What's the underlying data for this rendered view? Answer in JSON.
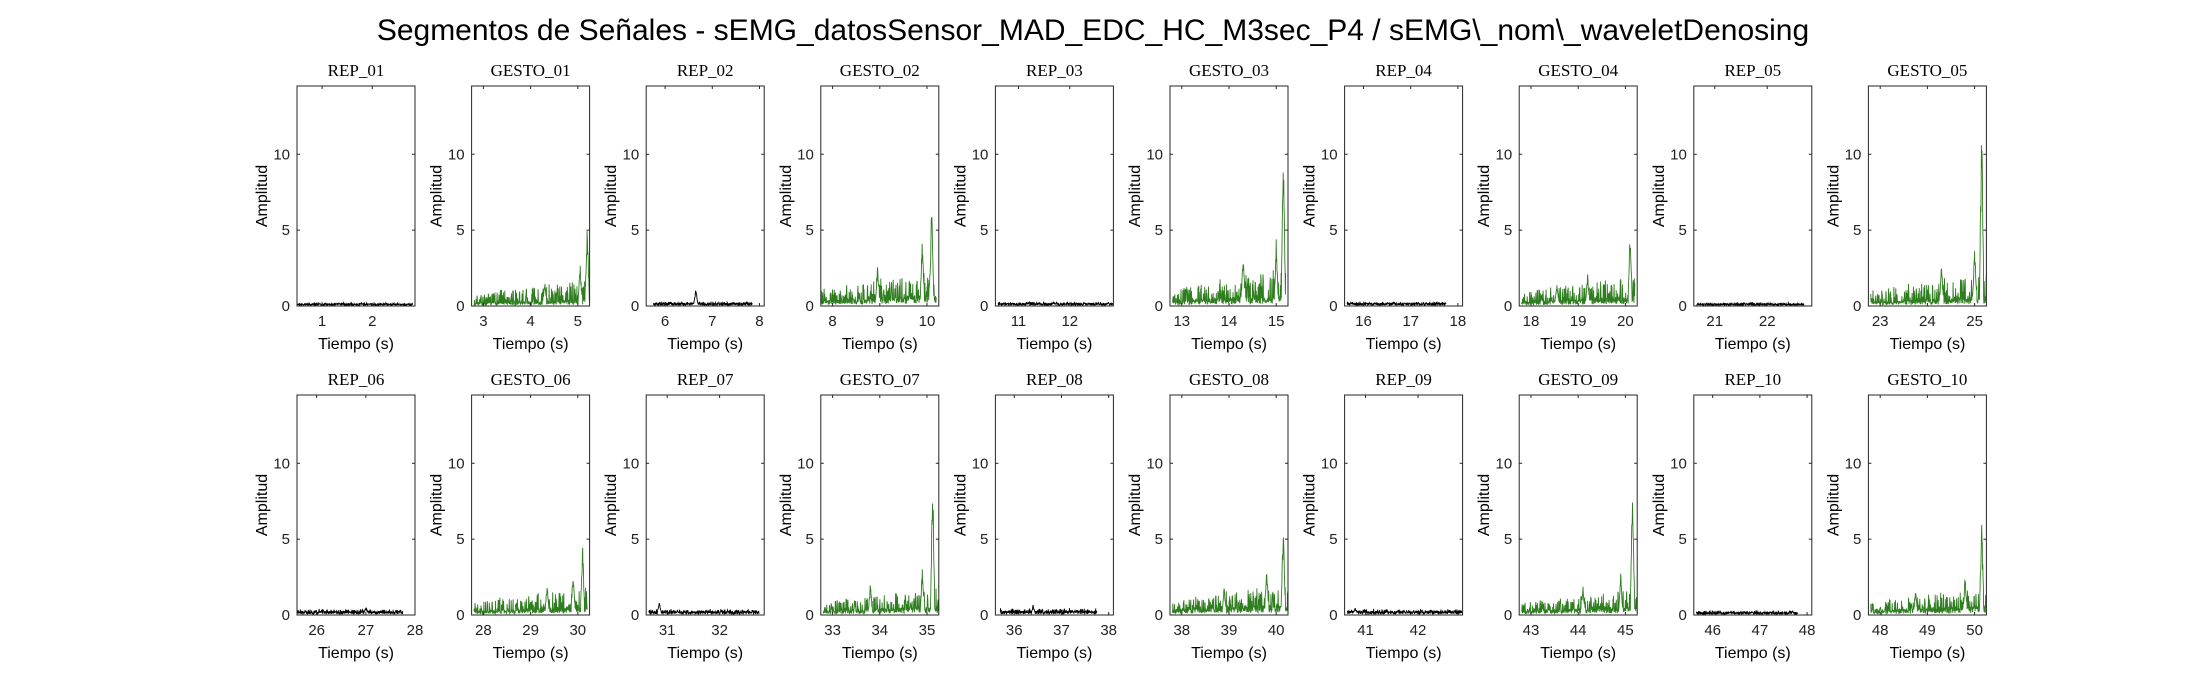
{
  "figure": {
    "title": "Segmentos de Señales - sEMG_datosSensor_MAD_EDC_HC_M3sec_P4 / sEMG\\_nom\\_waveletDenosing",
    "xlabel": "Tiempo (s)",
    "ylabel": "Amplitud"
  },
  "colors": {
    "rep": "#000000",
    "gesto": "#2e7d1e",
    "axis": "#262626"
  },
  "chart_data": {
    "type": "line",
    "layout": "2 rows x 10 columns",
    "ylim": [
      0,
      14.5
    ],
    "yticks": [
      0,
      5,
      10
    ],
    "grid": false,
    "panels": [
      {
        "title": "REP_01",
        "kind": "rep",
        "xlim": [
          0.5,
          2.85
        ],
        "xticks": [
          1,
          2
        ],
        "t_start": 0.5,
        "t_end": 2.8,
        "base": 0.12,
        "noise": 0.14,
        "peaks": []
      },
      {
        "title": "GESTO_01",
        "kind": "gesto",
        "xlim": [
          2.75,
          5.25
        ],
        "xticks": [
          3,
          4,
          5
        ],
        "t_start": 2.8,
        "t_end": 5.25,
        "base": 0.3,
        "noise": 1.2,
        "peaks": [
          [
            4.3,
            1.8
          ],
          [
            5.05,
            2.6
          ],
          [
            5.2,
            4.8
          ]
        ]
      },
      {
        "title": "REP_02",
        "kind": "rep",
        "xlim": [
          5.6,
          8.1
        ],
        "xticks": [
          6,
          7,
          8
        ],
        "t_start": 5.75,
        "t_end": 7.85,
        "base": 0.15,
        "noise": 0.2,
        "peaks": [
          [
            6.65,
            1.2
          ]
        ]
      },
      {
        "title": "GESTO_02",
        "kind": "gesto",
        "xlim": [
          7.75,
          10.25
        ],
        "xticks": [
          8,
          9,
          10
        ],
        "t_start": 7.75,
        "t_end": 10.2,
        "base": 0.5,
        "noise": 1.5,
        "peaks": [
          [
            8.95,
            3.3
          ],
          [
            9.9,
            4.2
          ],
          [
            10.1,
            6.4
          ]
        ]
      },
      {
        "title": "REP_03",
        "kind": "rep",
        "xlim": [
          10.55,
          12.85
        ],
        "xticks": [
          11,
          12
        ],
        "t_start": 10.6,
        "t_end": 12.85,
        "base": 0.15,
        "noise": 0.15,
        "peaks": []
      },
      {
        "title": "GESTO_03",
        "kind": "gesto",
        "xlim": [
          12.75,
          15.25
        ],
        "xticks": [
          13,
          14,
          15
        ],
        "t_start": 12.8,
        "t_end": 15.2,
        "base": 0.5,
        "noise": 1.6,
        "peaks": [
          [
            14.3,
            3.9
          ],
          [
            15.0,
            4.1
          ],
          [
            15.15,
            9.6
          ]
        ]
      },
      {
        "title": "REP_04",
        "kind": "rep",
        "xlim": [
          15.6,
          18.1
        ],
        "xticks": [
          16,
          17,
          18
        ],
        "t_start": 15.65,
        "t_end": 17.75,
        "base": 0.15,
        "noise": 0.18,
        "peaks": []
      },
      {
        "title": "GESTO_04",
        "kind": "gesto",
        "xlim": [
          17.75,
          20.25
        ],
        "xticks": [
          18,
          19,
          20
        ],
        "t_start": 17.8,
        "t_end": 20.2,
        "base": 0.4,
        "noise": 1.3,
        "peaks": [
          [
            18.55,
            2.2
          ],
          [
            19.2,
            2.5
          ],
          [
            20.1,
            4.8
          ]
        ]
      },
      {
        "title": "REP_05",
        "kind": "rep",
        "xlim": [
          20.6,
          22.85
        ],
        "xticks": [
          21,
          22
        ],
        "t_start": 20.65,
        "t_end": 22.7,
        "base": 0.12,
        "noise": 0.15,
        "peaks": []
      },
      {
        "title": "GESTO_05",
        "kind": "gesto",
        "xlim": [
          22.75,
          25.25
        ],
        "xticks": [
          23,
          24,
          25
        ],
        "t_start": 22.8,
        "t_end": 25.25,
        "base": 0.4,
        "noise": 1.6,
        "peaks": [
          [
            24.3,
            3.0
          ],
          [
            25.0,
            3.8
          ],
          [
            25.15,
            11.2
          ]
        ]
      },
      {
        "title": "REP_06",
        "kind": "rep",
        "xlim": [
          25.6,
          28.0
        ],
        "xticks": [
          26,
          27,
          28
        ],
        "t_start": 25.6,
        "t_end": 27.75,
        "base": 0.2,
        "noise": 0.25,
        "peaks": [
          [
            27.0,
            0.6
          ]
        ]
      },
      {
        "title": "GESTO_06",
        "kind": "gesto",
        "xlim": [
          27.75,
          30.25
        ],
        "xticks": [
          28,
          29,
          30
        ],
        "t_start": 27.8,
        "t_end": 30.2,
        "base": 0.4,
        "noise": 1.3,
        "peaks": [
          [
            29.35,
            2.3
          ],
          [
            29.9,
            2.6
          ],
          [
            30.1,
            4.2
          ]
        ]
      },
      {
        "title": "REP_07",
        "kind": "rep",
        "xlim": [
          30.6,
          32.85
        ],
        "xticks": [
          31,
          32
        ],
        "t_start": 30.65,
        "t_end": 32.75,
        "base": 0.2,
        "noise": 0.25,
        "peaks": [
          [
            30.85,
            0.9
          ]
        ]
      },
      {
        "title": "GESTO_07",
        "kind": "gesto",
        "xlim": [
          32.75,
          35.25
        ],
        "xticks": [
          33,
          34,
          35
        ],
        "t_start": 32.8,
        "t_end": 35.25,
        "base": 0.4,
        "noise": 1.2,
        "peaks": [
          [
            33.8,
            2.6
          ],
          [
            34.9,
            3.0
          ],
          [
            35.12,
            8.4
          ]
        ]
      },
      {
        "title": "REP_08",
        "kind": "rep",
        "xlim": [
          35.6,
          38.1
        ],
        "xticks": [
          36,
          37,
          38
        ],
        "t_start": 35.7,
        "t_end": 37.75,
        "base": 0.2,
        "noise": 0.35,
        "peaks": [
          [
            36.4,
            0.7
          ]
        ]
      },
      {
        "title": "GESTO_08",
        "kind": "gesto",
        "xlim": [
          37.75,
          40.25
        ],
        "xticks": [
          38,
          39,
          40
        ],
        "t_start": 37.8,
        "t_end": 40.25,
        "base": 0.5,
        "noise": 1.3,
        "peaks": [
          [
            38.9,
            2.5
          ],
          [
            39.8,
            3.0
          ],
          [
            40.15,
            5.6
          ]
        ]
      },
      {
        "title": "REP_09",
        "kind": "rep",
        "xlim": [
          40.6,
          42.85
        ],
        "xticks": [
          41,
          42
        ],
        "t_start": 40.65,
        "t_end": 42.85,
        "base": 0.2,
        "noise": 0.25,
        "peaks": [
          [
            40.8,
            0.5
          ]
        ]
      },
      {
        "title": "GESTO_09",
        "kind": "gesto",
        "xlim": [
          42.75,
          45.25
        ],
        "xticks": [
          43,
          44,
          45
        ],
        "t_start": 42.8,
        "t_end": 45.25,
        "base": 0.4,
        "noise": 1.1,
        "peaks": [
          [
            44.1,
            2.3
          ],
          [
            44.9,
            2.7
          ],
          [
            45.15,
            7.9
          ]
        ]
      },
      {
        "title": "REP_10",
        "kind": "rep",
        "xlim": [
          45.6,
          48.1
        ],
        "xticks": [
          46,
          47,
          48
        ],
        "t_start": 45.65,
        "t_end": 47.8,
        "base": 0.15,
        "noise": 0.18,
        "peaks": []
      },
      {
        "title": "GESTO_10",
        "kind": "gesto",
        "xlim": [
          47.75,
          50.25
        ],
        "xticks": [
          48,
          49,
          50
        ],
        "t_start": 47.8,
        "t_end": 50.25,
        "base": 0.4,
        "noise": 1.2,
        "peaks": [
          [
            48.75,
            2.1
          ],
          [
            49.8,
            2.6
          ],
          [
            50.15,
            5.9
          ]
        ]
      }
    ]
  }
}
